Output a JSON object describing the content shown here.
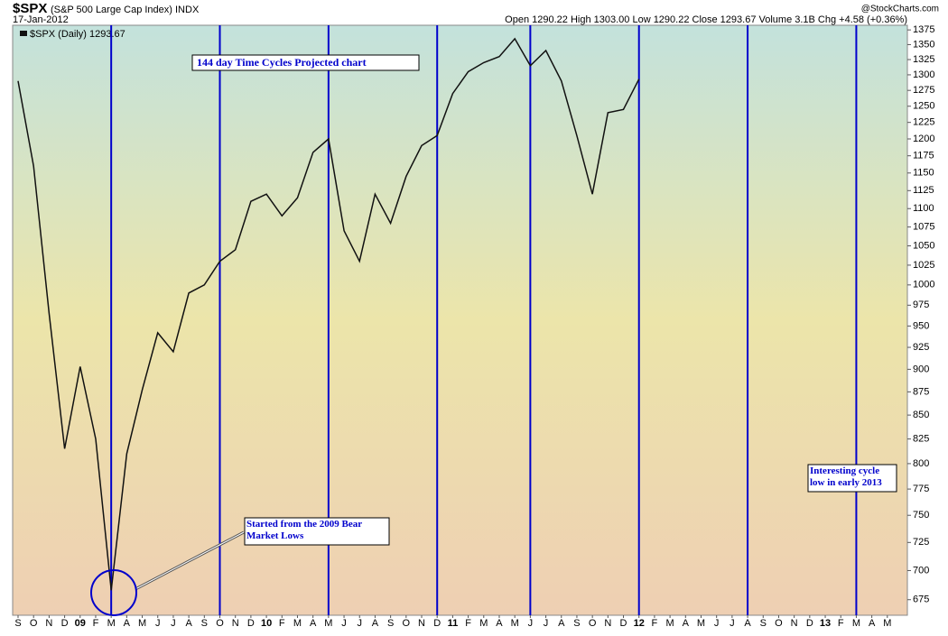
{
  "chart_data": {
    "type": "line",
    "header": {
      "symbol": "$SPX",
      "name": "(S&P 500 Large Cap Index)",
      "exchange": "INDX",
      "date": "17-Jan-2012",
      "quote": "Open 1290.22  High 1303.00  Low 1290.22  Close 1293.67  Volume 3.1B  Chg +4.58 (+0.36%)",
      "source": "@StockCharts.com"
    },
    "annotations": [
      "144 day Time Cycles  Projected chart",
      "Started from the 2009 Bear Market Lows",
      "Interesting cycle low in early 2013"
    ],
    "x": [
      "2008-09",
      "2008-10",
      "2008-11",
      "2008-12",
      "2009-01",
      "2009-02",
      "2009-03",
      "2009-04",
      "2009-05",
      "2009-06",
      "2009-07",
      "2009-08",
      "2009-09",
      "2009-10",
      "2009-11",
      "2009-12",
      "2010-01",
      "2010-02",
      "2010-03",
      "2010-04",
      "2010-05",
      "2010-06",
      "2010-07",
      "2010-08",
      "2010-09",
      "2010-10",
      "2010-11",
      "2010-12",
      "2011-01",
      "2011-02",
      "2011-03",
      "2011-04",
      "2011-05",
      "2011-06",
      "2011-07",
      "2011-08",
      "2011-09",
      "2011-10",
      "2011-11",
      "2011-12",
      "2012-01"
    ],
    "series": [
      {
        "name": "$SPX (Daily) 1293.67",
        "color": "#111111",
        "values": [
          1290,
          1160,
          965,
          815,
          903,
          825,
          683,
          810,
          877,
          942,
          920,
          990,
          1000,
          1030,
          1045,
          1110,
          1120,
          1090,
          1115,
          1180,
          1200,
          1070,
          1030,
          1120,
          1080,
          1145,
          1190,
          1205,
          1270,
          1305,
          1320,
          1330,
          1360,
          1315,
          1340,
          1290,
          1205,
          1120,
          1240,
          1245,
          1293
        ]
      }
    ],
    "cycle_lines": {
      "color": "#0000cc",
      "x": [
        "2009-03",
        "2009-10",
        "2010-05",
        "2010-12",
        "2011-06",
        "2012-01",
        "2012-08",
        "2013-03"
      ]
    },
    "xlim": [
      "2008-09",
      "2013-06"
    ],
    "xticks": [
      {
        "value": "2008-09",
        "label": "S"
      },
      {
        "value": "2008-10",
        "label": "O"
      },
      {
        "value": "2008-11",
        "label": "N"
      },
      {
        "value": "2008-12",
        "label": "D"
      },
      {
        "value": "2009-01",
        "label": "09"
      },
      {
        "value": "2009-02",
        "label": "F"
      },
      {
        "value": "2009-03",
        "label": "M"
      },
      {
        "value": "2009-04",
        "label": "A"
      },
      {
        "value": "2009-05",
        "label": "M"
      },
      {
        "value": "2009-06",
        "label": "J"
      },
      {
        "value": "2009-07",
        "label": "J"
      },
      {
        "value": "2009-08",
        "label": "A"
      },
      {
        "value": "2009-09",
        "label": "S"
      },
      {
        "value": "2009-10",
        "label": "O"
      },
      {
        "value": "2009-11",
        "label": "N"
      },
      {
        "value": "2009-12",
        "label": "D"
      },
      {
        "value": "2010-01",
        "label": "10"
      },
      {
        "value": "2010-02",
        "label": "F"
      },
      {
        "value": "2010-03",
        "label": "M"
      },
      {
        "value": "2010-04",
        "label": "A"
      },
      {
        "value": "2010-05",
        "label": "M"
      },
      {
        "value": "2010-06",
        "label": "J"
      },
      {
        "value": "2010-07",
        "label": "J"
      },
      {
        "value": "2010-08",
        "label": "A"
      },
      {
        "value": "2010-09",
        "label": "S"
      },
      {
        "value": "2010-10",
        "label": "O"
      },
      {
        "value": "2010-11",
        "label": "N"
      },
      {
        "value": "2010-12",
        "label": "D"
      },
      {
        "value": "2011-01",
        "label": "11"
      },
      {
        "value": "2011-02",
        "label": "F"
      },
      {
        "value": "2011-03",
        "label": "M"
      },
      {
        "value": "2011-04",
        "label": "A"
      },
      {
        "value": "2011-05",
        "label": "M"
      },
      {
        "value": "2011-06",
        "label": "J"
      },
      {
        "value": "2011-07",
        "label": "J"
      },
      {
        "value": "2011-08",
        "label": "A"
      },
      {
        "value": "2011-09",
        "label": "S"
      },
      {
        "value": "2011-10",
        "label": "O"
      },
      {
        "value": "2011-11",
        "label": "N"
      },
      {
        "value": "2011-12",
        "label": "D"
      },
      {
        "value": "2012-01",
        "label": "12"
      },
      {
        "value": "2012-02",
        "label": "F"
      },
      {
        "value": "2012-03",
        "label": "M"
      },
      {
        "value": "2012-04",
        "label": "A"
      },
      {
        "value": "2012-05",
        "label": "M"
      },
      {
        "value": "2012-06",
        "label": "J"
      },
      {
        "value": "2012-07",
        "label": "J"
      },
      {
        "value": "2012-08",
        "label": "A"
      },
      {
        "value": "2012-09",
        "label": "S"
      },
      {
        "value": "2012-10",
        "label": "O"
      },
      {
        "value": "2012-11",
        "label": "N"
      },
      {
        "value": "2012-12",
        "label": "D"
      },
      {
        "value": "2013-01",
        "label": "13"
      },
      {
        "value": "2013-02",
        "label": "F"
      },
      {
        "value": "2013-03",
        "label": "M"
      },
      {
        "value": "2013-04",
        "label": "A"
      },
      {
        "value": "2013-05",
        "label": "M"
      }
    ],
    "ylim": [
      662,
      1383
    ],
    "log_scale": true,
    "yticks": [
      675,
      700,
      725,
      750,
      775,
      800,
      825,
      850,
      875,
      900,
      925,
      950,
      975,
      1000,
      1025,
      1050,
      1075,
      1100,
      1125,
      1150,
      1175,
      1200,
      1225,
      1250,
      1275,
      1300,
      1325,
      1350,
      1375
    ]
  }
}
